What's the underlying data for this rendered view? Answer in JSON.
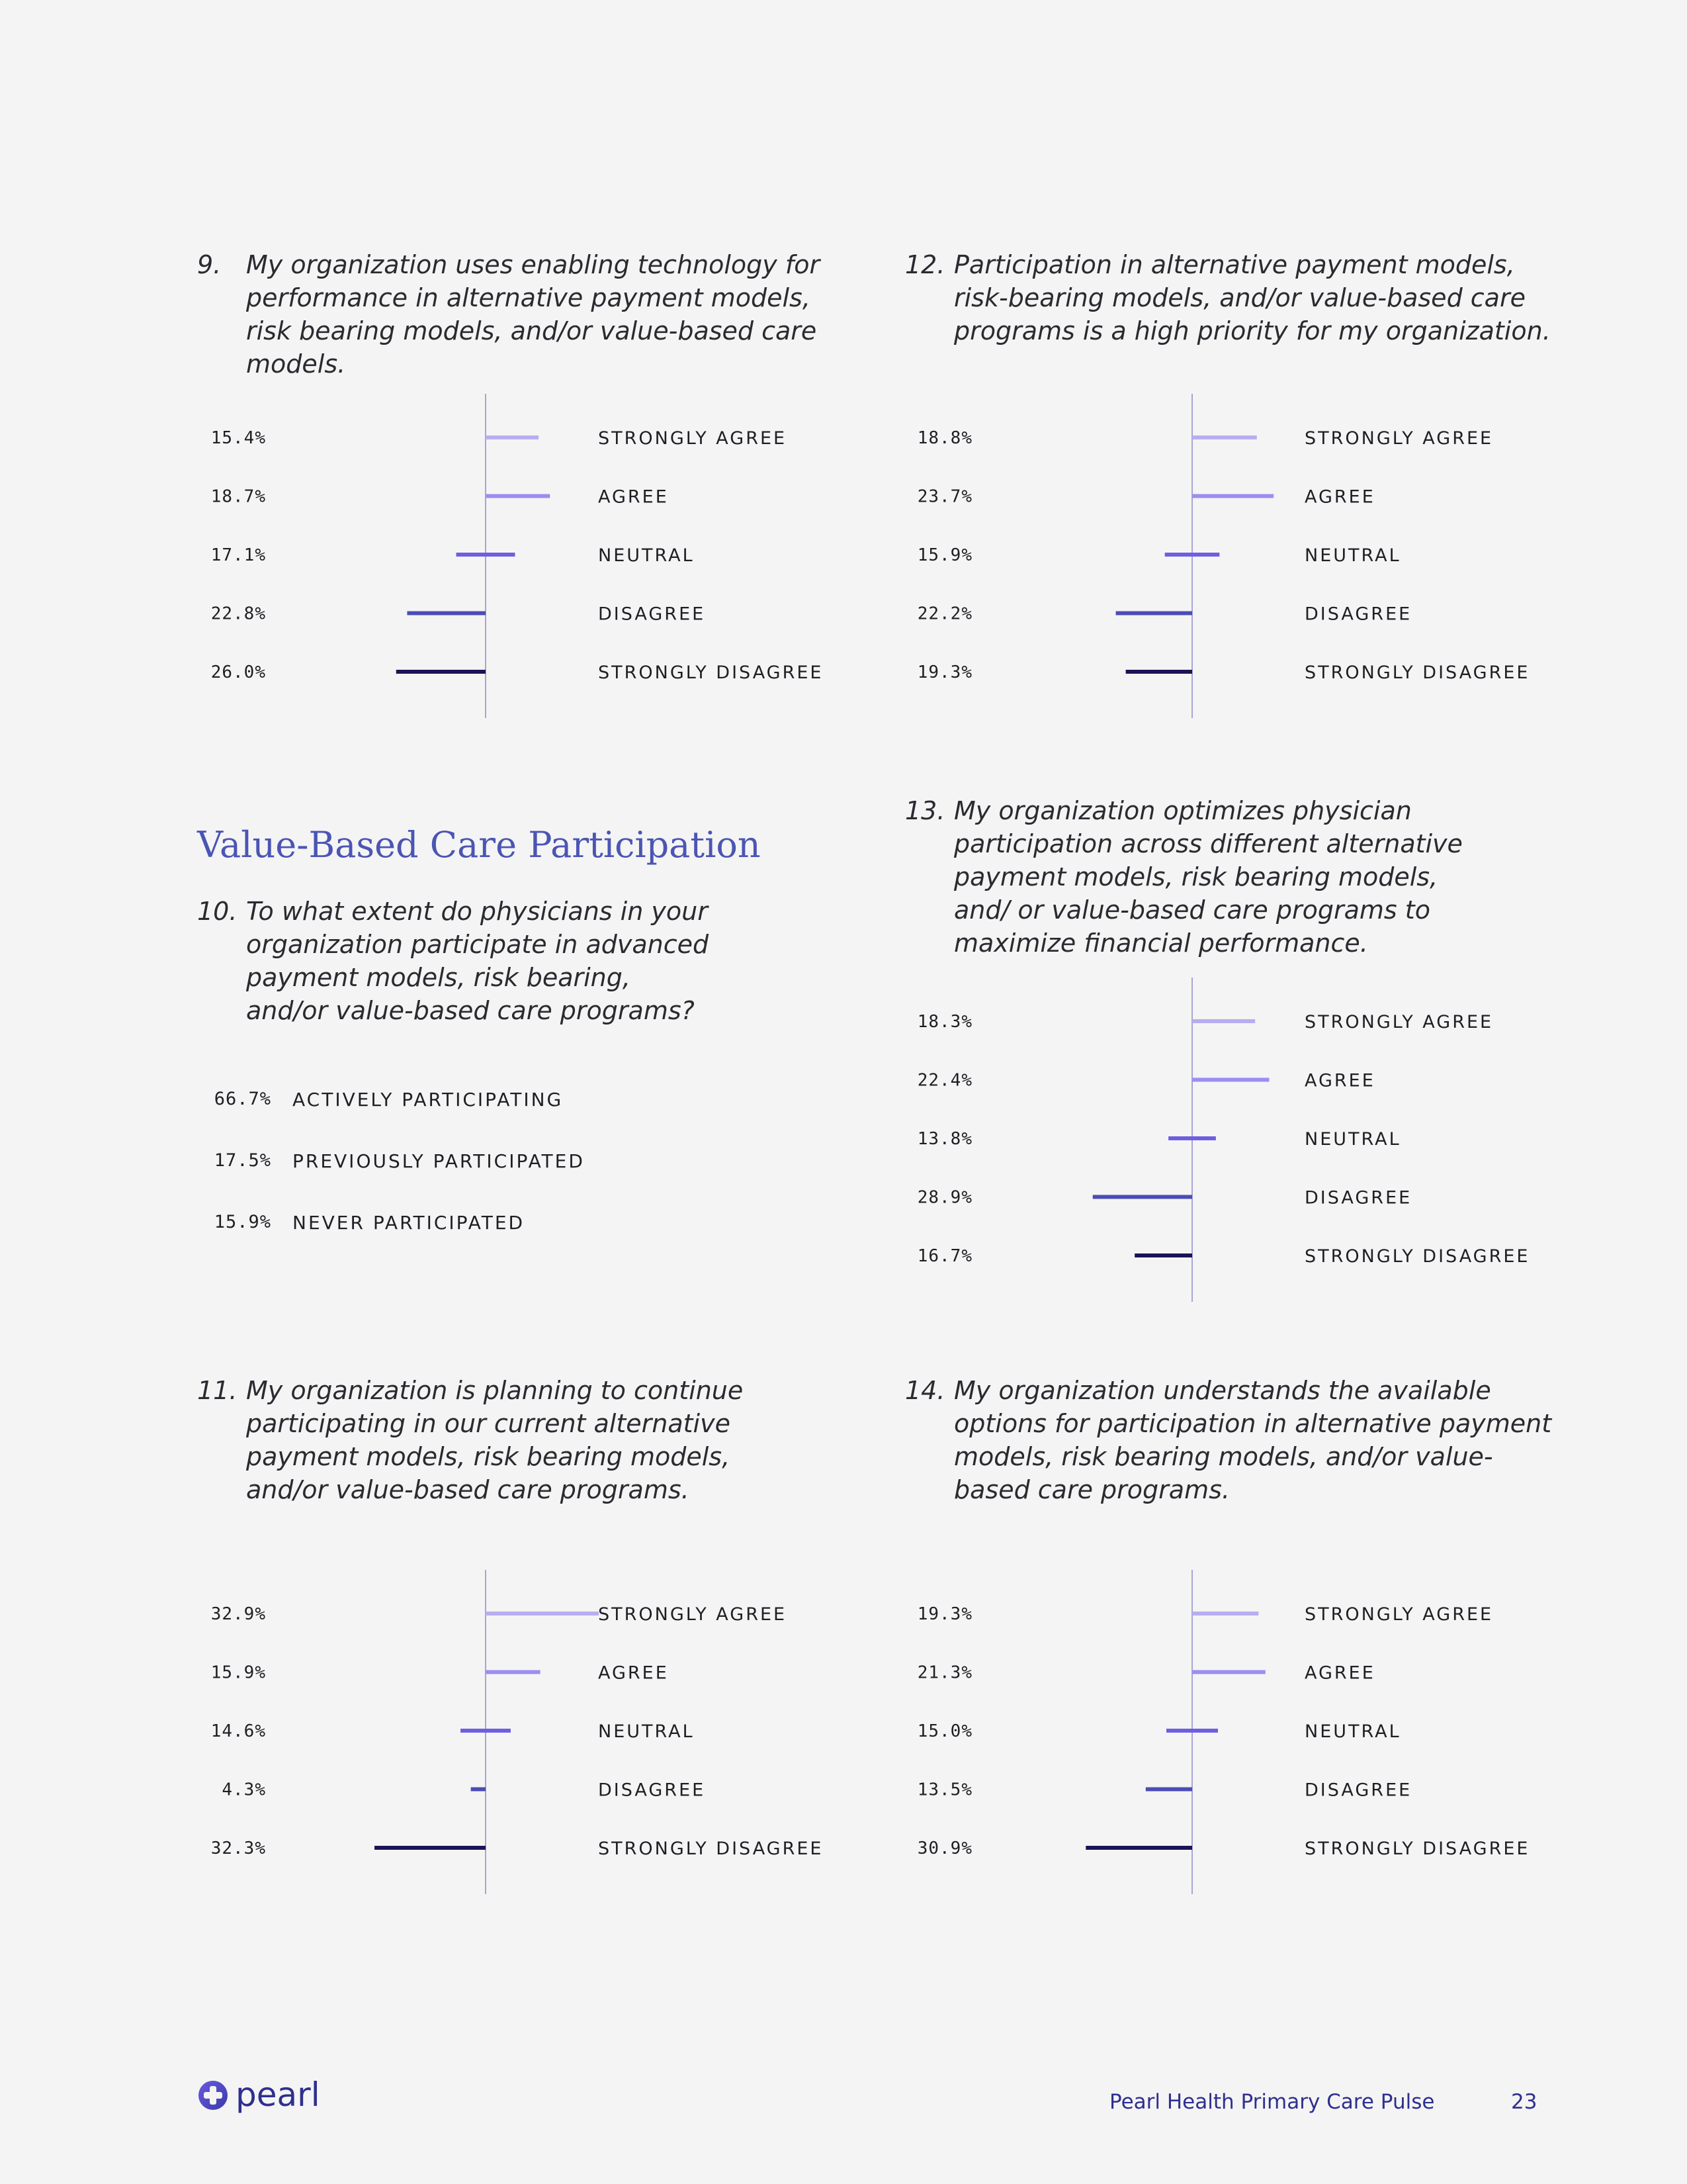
{
  "categories": [
    "STRONGLY AGREE",
    "AGREE",
    "NEUTRAL",
    "DISAGREE",
    "STRONGLY DISAGREE"
  ],
  "colors": {
    "strongly_agree": "#b7aef0",
    "agree": "#9b8ef0",
    "neutral": "#6d5fe0",
    "disagree": "#4a4cb8",
    "strongly_disagree": "#1a1357",
    "axis": "#a6a6d6",
    "accent": "#4b55b3",
    "footer": "#2f2f8f"
  },
  "questions": {
    "q9": {
      "number": "9.",
      "text": "My organization uses enabling technology for performance in alternative payment models, risk bearing models, and/or value-based care models."
    },
    "q10": {
      "number": "10.",
      "text": "To what extent do physicians in your organization participate in advanced payment models, risk bearing, and/or value-based care programs?"
    },
    "q11": {
      "number": "11.",
      "text": "My organization is planning to continue participating in our current alternative payment models, risk bearing models, and/or value-based care programs."
    },
    "q12": {
      "number": "12.",
      "text": "Participation in alternative payment models, risk-bearing models, and/or value-based care programs is a high priority for my organization."
    },
    "q13": {
      "number": "13.",
      "text": "My organization optimizes physician participation across different alternative payment models, risk bearing models, and/ or value-based care programs to maximize financial performance."
    },
    "q14": {
      "number": "14.",
      "text": "My organization understands the available options for participation in alternative payment models, risk bearing models, and/or value-based care programs."
    }
  },
  "section_title": "Value-Based Care Participation",
  "participation": [
    {
      "value": "66.7%",
      "label": "ACTIVELY PARTICIPATING"
    },
    {
      "value": "17.5%",
      "label": "PREVIOUSLY PARTICIPATED"
    },
    {
      "value": "15.9%",
      "label": "NEVER PARTICIPATED"
    }
  ],
  "chart_data": [
    {
      "id": "q9",
      "type": "bar",
      "orientation": "diverging-horizontal",
      "categories": [
        "STRONGLY AGREE",
        "AGREE",
        "NEUTRAL",
        "DISAGREE",
        "STRONGLY DISAGREE"
      ],
      "values": [
        15.4,
        18.7,
        17.1,
        22.8,
        26.0
      ],
      "labels": [
        "15.4%",
        "18.7%",
        "17.1%",
        "22.8%",
        "26.0%"
      ],
      "unit": "%"
    },
    {
      "id": "q12",
      "type": "bar",
      "orientation": "diverging-horizontal",
      "categories": [
        "STRONGLY AGREE",
        "AGREE",
        "NEUTRAL",
        "DISAGREE",
        "STRONGLY DISAGREE"
      ],
      "values": [
        18.8,
        23.7,
        15.9,
        22.2,
        19.3
      ],
      "labels": [
        "18.8%",
        "23.7%",
        "15.9%",
        "22.2%",
        "19.3%"
      ],
      "unit": "%"
    },
    {
      "id": "q13",
      "type": "bar",
      "orientation": "diverging-horizontal",
      "categories": [
        "STRONGLY AGREE",
        "AGREE",
        "NEUTRAL",
        "DISAGREE",
        "STRONGLY DISAGREE"
      ],
      "values": [
        18.3,
        22.4,
        13.8,
        28.9,
        16.7
      ],
      "labels": [
        "18.3%",
        "22.4%",
        "13.8%",
        "28.9%",
        "16.7%"
      ],
      "unit": "%"
    },
    {
      "id": "q11",
      "type": "bar",
      "orientation": "diverging-horizontal",
      "categories": [
        "STRONGLY AGREE",
        "AGREE",
        "NEUTRAL",
        "DISAGREE",
        "STRONGLY DISAGREE"
      ],
      "values": [
        32.9,
        15.9,
        14.6,
        4.3,
        32.3
      ],
      "labels": [
        "32.9%",
        "15.9%",
        "14.6%",
        "4.3%",
        "32.3%"
      ],
      "unit": "%"
    },
    {
      "id": "q14",
      "type": "bar",
      "orientation": "diverging-horizontal",
      "categories": [
        "STRONGLY AGREE",
        "AGREE",
        "NEUTRAL",
        "DISAGREE",
        "STRONGLY DISAGREE"
      ],
      "values": [
        19.3,
        21.3,
        15.0,
        13.5,
        30.9
      ],
      "labels": [
        "19.3%",
        "21.3%",
        "15.0%",
        "13.5%",
        "30.9%"
      ],
      "unit": "%"
    }
  ],
  "footer": {
    "logo_text": "pearl",
    "title": "Pearl Health Primary Care Pulse",
    "page_number": "23"
  }
}
